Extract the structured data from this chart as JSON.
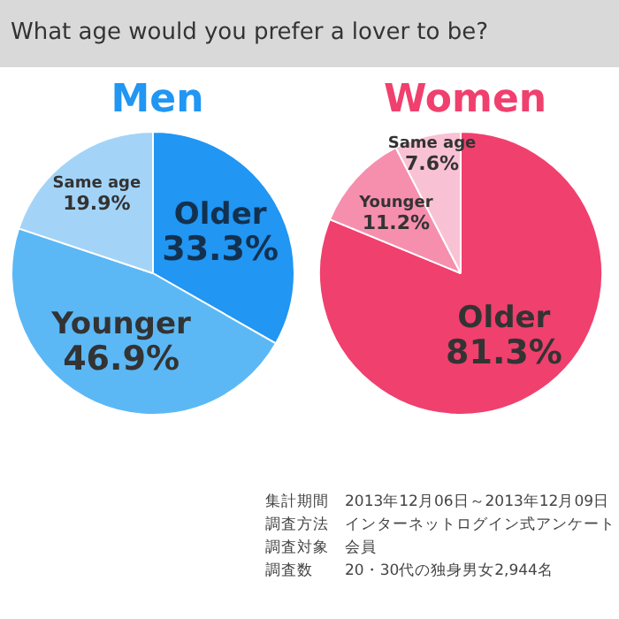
{
  "chart_data": [
    {
      "type": "pie",
      "title": "Men",
      "categories": [
        "Older",
        "Younger",
        "Same age"
      ],
      "values": [
        33.3,
        46.9,
        19.9
      ],
      "colors": [
        "#2196f3",
        "#5bb8f5",
        "#a3d4f7"
      ],
      "value_labels": [
        "33.3%",
        "46.9%",
        "19.9%"
      ]
    },
    {
      "type": "pie",
      "title": "Women",
      "categories": [
        "Older",
        "Younger",
        "Same age"
      ],
      "values": [
        81.3,
        11.2,
        7.6
      ],
      "colors": [
        "#f0406e",
        "#f68fae",
        "#f9c2d4"
      ],
      "value_labels": [
        "81.3%",
        "11.2%",
        "7.6%"
      ]
    },
    {
      "type": "other",
      "title": "What age would you prefer a lover to be?",
      "annotations": [
        "集計期間　2013年12月06日～2013年12月09日",
        "調査方法　インターネットログイン式アンケート",
        "調査対象　会員",
        "調査数　　20・30代の独身男女2,944名"
      ]
    }
  ]
}
